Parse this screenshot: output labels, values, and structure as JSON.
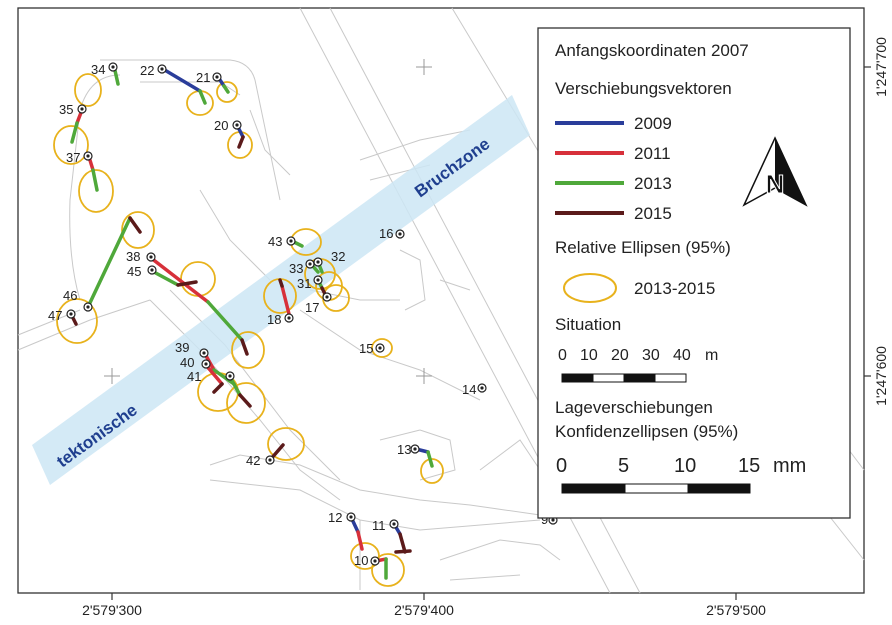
{
  "zone": {
    "label_left": "tektonische",
    "label_right": "Bruchzone",
    "color": "#cde6f5",
    "text_color": "#1f3f8f"
  },
  "axes": {
    "x_ticks": [
      "2'579'300",
      "2'579'400",
      "2'579'500"
    ],
    "y_ticks": [
      "1'247'700",
      "1'247'600"
    ]
  },
  "legend": {
    "title": "Anfangskoordinaten 2007",
    "vectors_heading": "Verschiebungsvektoren",
    "vectors": [
      {
        "year": "2009",
        "color": "#2a3d9a"
      },
      {
        "year": "2011",
        "color": "#d7303a"
      },
      {
        "year": "2013",
        "color": "#4fa83a"
      },
      {
        "year": "2015",
        "color": "#5b1a1a"
      }
    ],
    "ellipse_heading": "Relative Ellipsen (95%)",
    "ellipse_label": "2013-2015",
    "ellipse_color": "#e8b21c",
    "situation_heading": "Situation",
    "situation_scale": [
      "0",
      "10",
      "20",
      "30",
      "40",
      "m"
    ],
    "lage_heading_1": "Lageverschiebungen",
    "lage_heading_2": "Konfidenzellipsen (95%)",
    "lage_scale": [
      "0",
      "5",
      "10",
      "15",
      "mm"
    ]
  },
  "points": [
    "34",
    "22",
    "21",
    "35",
    "20",
    "37",
    "16",
    "43",
    "32",
    "38",
    "33",
    "45",
    "31",
    "46",
    "17",
    "47",
    "18",
    "15",
    "39",
    "40",
    "14",
    "41",
    "13",
    "42",
    "12",
    "11",
    "9",
    "10"
  ]
}
